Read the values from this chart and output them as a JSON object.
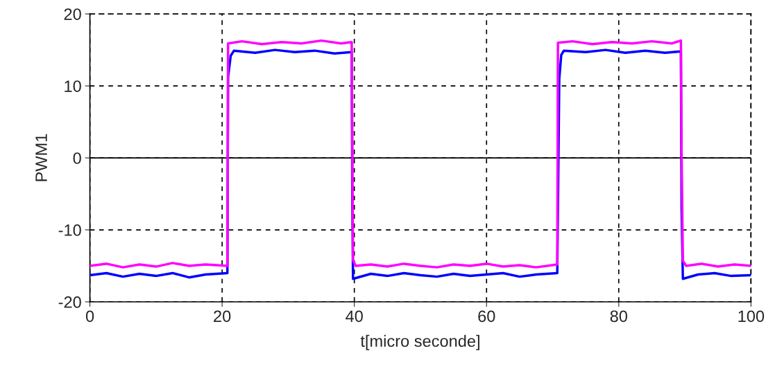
{
  "chart_data": {
    "type": "line",
    "xlabel": "t[micro seconde]",
    "ylabel": "PWM1",
    "xlim": [
      0,
      100
    ],
    "xticks": [
      0,
      20,
      40,
      60,
      80,
      100
    ],
    "ylim": [
      -20,
      20
    ],
    "yticks": [
      -20,
      -10,
      0,
      10,
      20
    ],
    "grid": true,
    "line_style": "solid",
    "ref_lines": [
      {
        "axis": "y",
        "value": 0,
        "color": "#000000",
        "line_style": "solid"
      }
    ],
    "series": [
      {
        "color": "#0000ff",
        "x": [
          0,
          2.5,
          5,
          7.5,
          10,
          12.5,
          15,
          17.5,
          20.8,
          20.9,
          21.3,
          21.8,
          25,
          28,
          31,
          34,
          37,
          39.6,
          39.7,
          39.8,
          42.5,
          45,
          47.5,
          50,
          52.5,
          55,
          57.5,
          60,
          62.5,
          65,
          67.5,
          70.7,
          71.0,
          71.3,
          71.7,
          75,
          78,
          81,
          84,
          87,
          89.4,
          89.5,
          89.7,
          92,
          94.5,
          97,
          100
        ],
        "values": [
          -16.3,
          -16.0,
          -16.5,
          -16.1,
          -16.4,
          -16.0,
          -16.6,
          -16.2,
          -16.0,
          11.2,
          14.2,
          14.9,
          14.6,
          15.0,
          14.7,
          14.9,
          14.5,
          14.7,
          -6.5,
          -16.8,
          -16.1,
          -16.4,
          -16.0,
          -16.3,
          -16.5,
          -16.1,
          -16.4,
          -16.2,
          -16.0,
          -16.5,
          -16.2,
          -16.0,
          11.0,
          14.3,
          14.9,
          14.7,
          15.0,
          14.6,
          14.9,
          14.6,
          14.8,
          -7.0,
          -16.8,
          -16.2,
          -16.0,
          -16.4,
          -16.3
        ]
      },
      {
        "color": "#ff00ff",
        "x": [
          0,
          2.5,
          5,
          7.5,
          10,
          12.5,
          15,
          17.5,
          20.8,
          20.9,
          23,
          26,
          29,
          32,
          35,
          38,
          39.6,
          39.7,
          39.8,
          40.2,
          42.5,
          45,
          47.5,
          50,
          52.5,
          55,
          57.5,
          60,
          62.5,
          65,
          67.5,
          70.7,
          70.8,
          73,
          76,
          79,
          82,
          85,
          88,
          89.4,
          89.5,
          89.7,
          90.2,
          92.5,
          95,
          97.5,
          100
        ],
        "values": [
          -15.0,
          -14.7,
          -15.2,
          -14.8,
          -15.1,
          -14.6,
          -15.0,
          -14.8,
          -15.0,
          15.9,
          16.2,
          15.8,
          16.1,
          15.9,
          16.3,
          15.9,
          16.1,
          1.2,
          -14.2,
          -15.0,
          -14.8,
          -15.1,
          -14.7,
          -15.0,
          -15.2,
          -14.8,
          -15.0,
          -14.7,
          -15.1,
          -14.9,
          -15.2,
          -14.8,
          16.0,
          16.2,
          15.8,
          16.1,
          15.9,
          16.2,
          15.9,
          16.3,
          1.0,
          -14.3,
          -15.0,
          -14.7,
          -15.1,
          -14.8,
          -15.0
        ]
      }
    ]
  }
}
